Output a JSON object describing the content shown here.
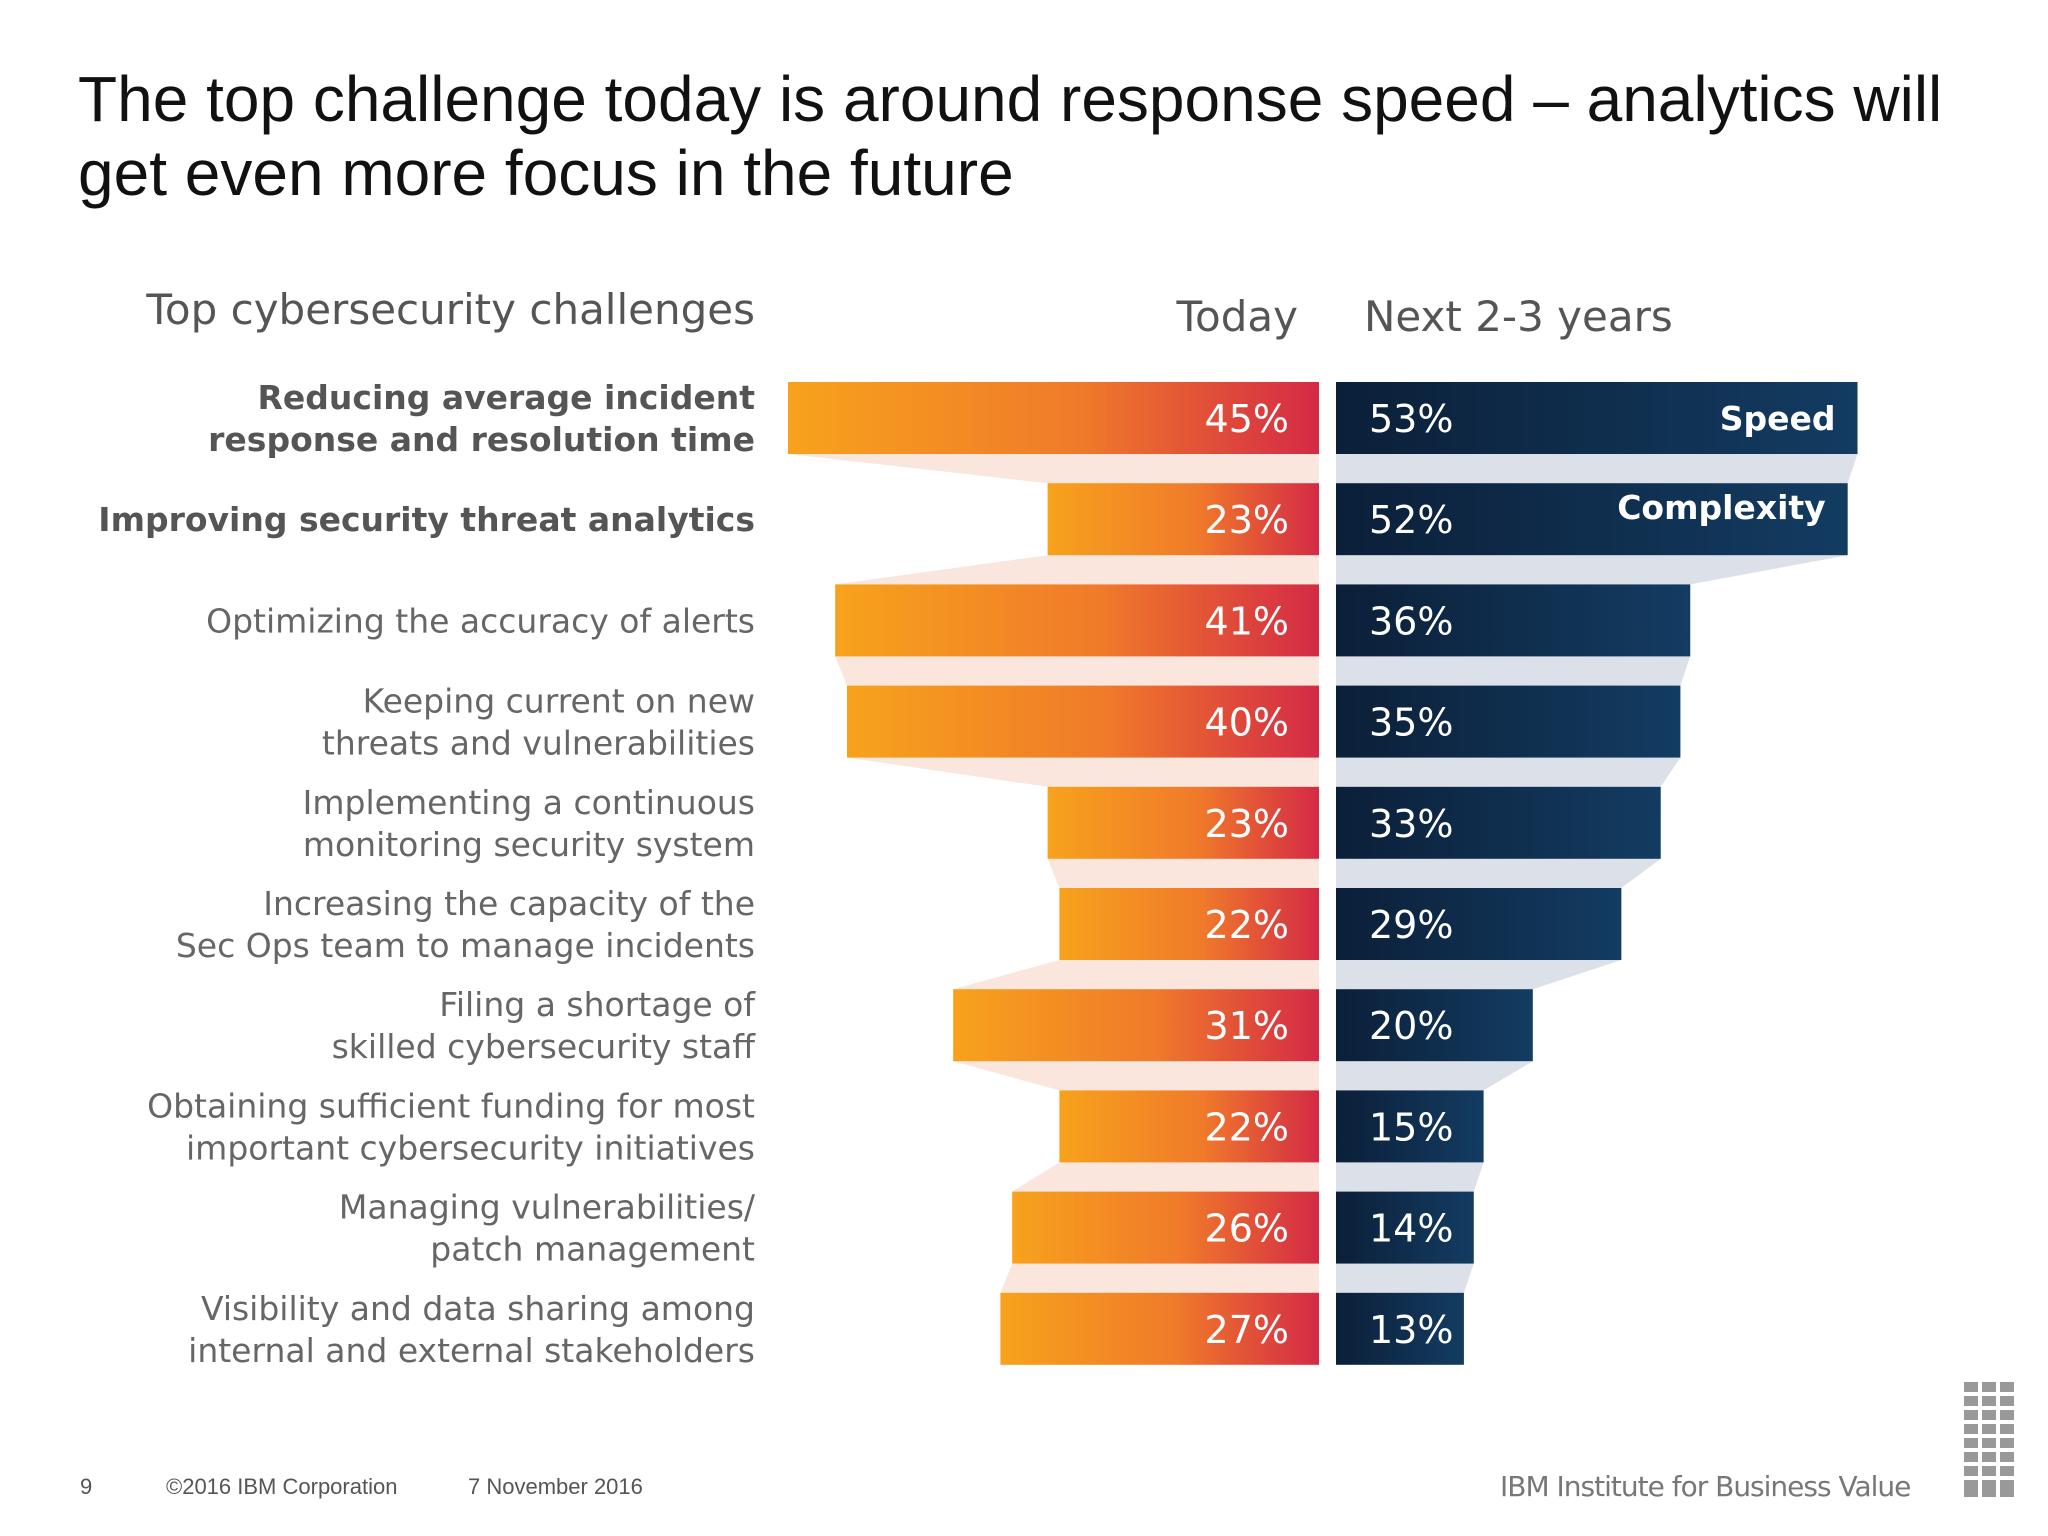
{
  "title": "The top challenge today is around response speed – analytics will get even more focus in the future",
  "chart_data": {
    "type": "bar",
    "title": "Top cybersecurity challenges",
    "categories": [
      [
        "Reducing average incident",
        "response and resolution time"
      ],
      [
        "Improving security threat analytics"
      ],
      [
        "Optimizing the accuracy of alerts"
      ],
      [
        "Keeping current on new",
        "threats and vulnerabilities"
      ],
      [
        "Implementing a continuous",
        "monitoring security system"
      ],
      [
        "Increasing the capacity of the",
        "Sec Ops team to manage incidents"
      ],
      [
        "Filing a shortage of",
        "skilled cybersecurity staff"
      ],
      [
        "Obtaining sufficient funding for most",
        "important cybersecurity initiatives"
      ],
      [
        "Managing vulnerabilities/",
        "patch management"
      ],
      [
        "Visibility and data sharing among",
        "internal and external stakeholders"
      ]
    ],
    "bold_categories": [
      0,
      1
    ],
    "series": [
      {
        "name": "Today",
        "values": [
          45,
          23,
          41,
          40,
          23,
          22,
          31,
          22,
          26,
          27
        ],
        "color": "#f0762a"
      },
      {
        "name": "Next 2-3 years",
        "values": [
          53,
          52,
          36,
          35,
          33,
          29,
          20,
          15,
          14,
          13
        ],
        "color": "#0e2a47"
      }
    ],
    "annotations": [
      {
        "row": 0,
        "series": "Next 2-3 years",
        "text": "Speed"
      },
      {
        "row": 1,
        "series": "Next 2-3 years",
        "text": "Complexity"
      }
    ],
    "unit": "%",
    "legend": "top"
  },
  "footer": {
    "page": "9",
    "copyright": "©2016 IBM Corporation",
    "date": "7 November 2016",
    "brand": "IBM Institute for Business Value"
  }
}
